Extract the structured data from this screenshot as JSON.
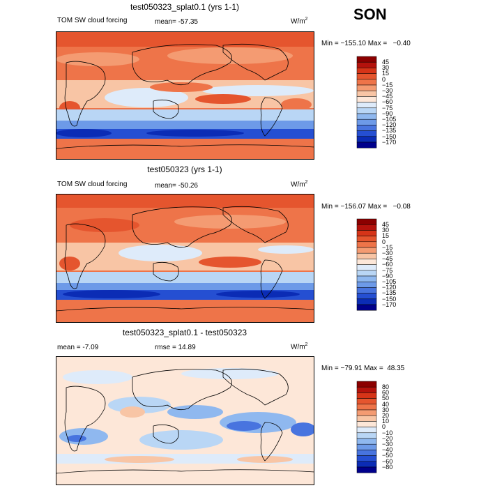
{
  "season": "SON",
  "panels": [
    {
      "id": "top",
      "title": "test050323_splat0.1 (yrs 1-1)",
      "variable": "TOM SW cloud forcing",
      "mean_text": "mean=  -57.35",
      "units_base": "W/m",
      "units_exp": "2",
      "min_text": "Min = −155.10",
      "max_text": "Max =   −0.40",
      "colorbar": [
        "45",
        "30",
        "15",
        "0",
        "−15",
        "−30",
        "−45",
        "−60",
        "−75",
        "−90",
        "−105",
        "−120",
        "−135",
        "−150",
        "−170"
      ],
      "colors": [
        "#8b0000",
        "#b4120c",
        "#d63418",
        "#e5552e",
        "#ee7449",
        "#f49b72",
        "#f8c5a5",
        "#fde7d8",
        "#deebfa",
        "#b9d6f5",
        "#8fb8ef",
        "#6d9ae8",
        "#4874df",
        "#254fd2",
        "#0b2cb5",
        "#00008b"
      ]
    },
    {
      "id": "middle",
      "title": "test050323 (yrs 1-1)",
      "variable": "TOM SW cloud forcing",
      "mean_text": "mean=  -50.26",
      "units_base": "W/m",
      "units_exp": "2",
      "min_text": "Min = −156.07",
      "max_text": "Max =   −0.08",
      "colorbar": [
        "45",
        "30",
        "15",
        "0",
        "−15",
        "−30",
        "−45",
        "−60",
        "−75",
        "−90",
        "−105",
        "−120",
        "−135",
        "−150",
        "−170"
      ],
      "colors": [
        "#8b0000",
        "#b4120c",
        "#d63418",
        "#e5552e",
        "#ee7449",
        "#f49b72",
        "#f8c5a5",
        "#fde7d8",
        "#deebfa",
        "#b9d6f5",
        "#8fb8ef",
        "#6d9ae8",
        "#4874df",
        "#254fd2",
        "#0b2cb5",
        "#00008b"
      ]
    },
    {
      "id": "bottom",
      "title": "test050323_splat0.1 - test050323",
      "mean_text": "mean =   -7.09",
      "rmse_text": "rmse =   14.89",
      "units_base": "W/m",
      "units_exp": "2",
      "min_text": "Min = −79.91",
      "max_text": "Max =  48.35",
      "colorbar": [
        "80",
        "60",
        "50",
        "40",
        "30",
        "20",
        "10",
        "0",
        "−10",
        "−20",
        "−30",
        "−40",
        "−50",
        "−60",
        "−80"
      ],
      "colors": [
        "#8b0000",
        "#b4120c",
        "#d63418",
        "#e5552e",
        "#ee7449",
        "#f49b72",
        "#f8c5a5",
        "#fde7d8",
        "#deebfa",
        "#b9d6f5",
        "#8fb8ef",
        "#6d9ae8",
        "#4874df",
        "#254fd2",
        "#0b2cb5",
        "#00008b"
      ]
    }
  ]
}
